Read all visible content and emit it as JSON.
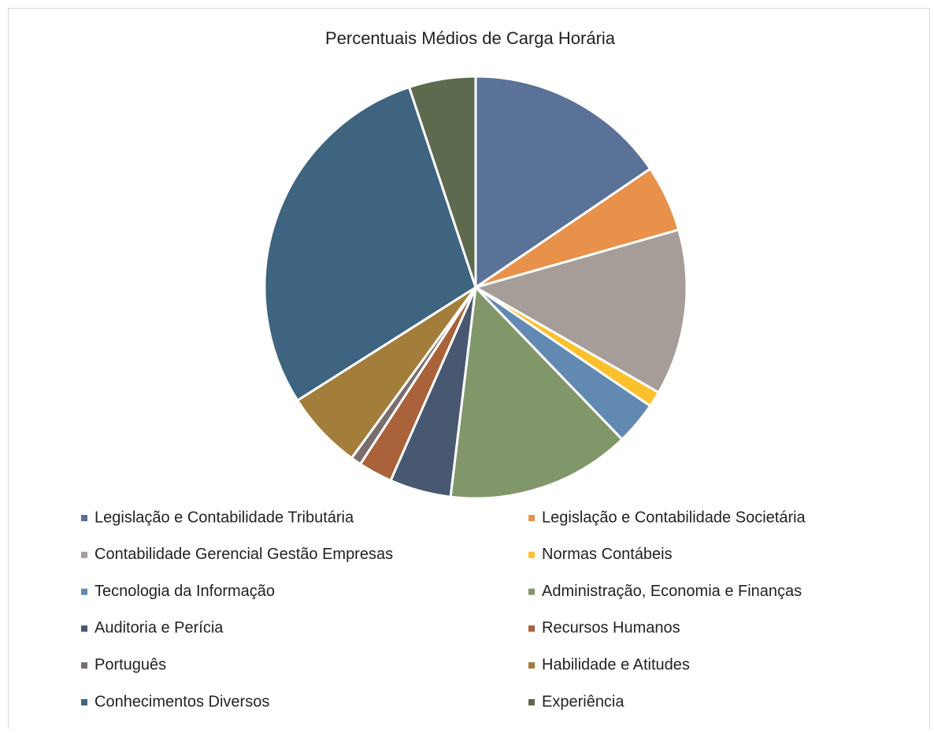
{
  "chart_data": {
    "type": "pie",
    "title": "Percentuais Médios de Carga Horária",
    "categories": [
      "Legislação e Contabilidade Tributária",
      "Legislação e Contabilidade Societária",
      "Contabilidade Gerencial Gestão Empresas",
      "Normas Contábeis",
      "Tecnologia da Informação",
      "Administração, Economia e Finanças",
      "Auditoria e Perícia",
      "Recursos Humanos",
      "Português",
      "Habilidade e Atitudes",
      "Conhecimentos Diversos",
      "Experiência"
    ],
    "values": [
      15.5,
      5.1,
      12.7,
      1.2,
      3.3,
      14.1,
      4.7,
      2.6,
      0.8,
      6.0,
      28.9,
      5.1
    ],
    "colors": [
      "#5a7198",
      "#e8914a",
      "#a69d98",
      "#fcc02c",
      "#6289b1",
      "#81976a",
      "#485870",
      "#a9623a",
      "#7a6d6d",
      "#a37d3a",
      "#3e647f",
      "#5e6a4d"
    ],
    "legend": "bottom"
  }
}
